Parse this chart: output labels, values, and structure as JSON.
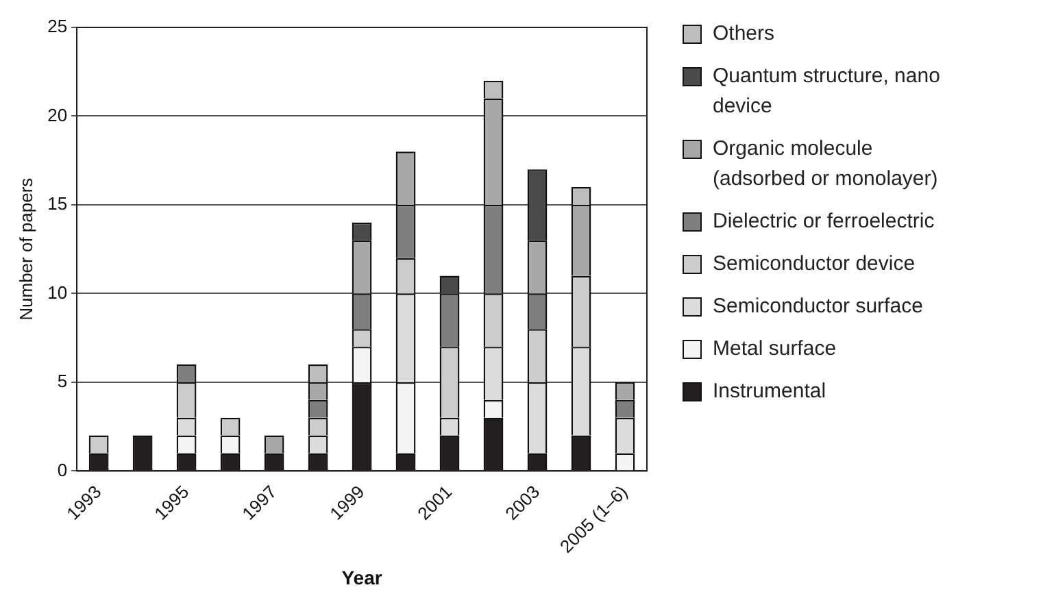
{
  "chart_data": {
    "type": "bar",
    "stacked": true,
    "xlabel": "Year",
    "ylabel": "Number of papers",
    "categories": [
      "1993",
      null,
      "1995",
      null,
      "1997",
      null,
      "1999",
      null,
      "2001",
      null,
      "2003",
      null,
      "2005 (1–6)"
    ],
    "series": [
      {
        "name": "Instrumental",
        "color": "#231f20",
        "values": [
          1,
          2,
          1,
          1,
          1,
          1,
          5,
          1,
          2,
          3,
          1,
          2,
          0
        ]
      },
      {
        "name": "Metal surface",
        "color": "#f4f4f4",
        "values": [
          0,
          0,
          1,
          1,
          0,
          0,
          2,
          4,
          0,
          1,
          0,
          0,
          1
        ]
      },
      {
        "name": "Semiconductor surface",
        "color": "#dcdcdc",
        "values": [
          0,
          0,
          1,
          0,
          0,
          1,
          0,
          5,
          1,
          3,
          4,
          5,
          2
        ]
      },
      {
        "name": "Semiconductor device",
        "color": "#cccccc",
        "values": [
          1,
          0,
          2,
          1,
          0,
          1,
          1,
          2,
          4,
          3,
          3,
          4,
          0
        ]
      },
      {
        "name": "Dielectric or ferroelectric",
        "color": "#7f7f7f",
        "values": [
          0,
          0,
          1,
          0,
          0,
          1,
          2,
          3,
          3,
          5,
          2,
          0,
          1
        ]
      },
      {
        "name": "Organic molecule (adsorbed or monolayer)",
        "color": "#a8a8a8",
        "values": [
          0,
          0,
          0,
          0,
          1,
          1,
          3,
          3,
          0,
          6,
          3,
          4,
          1
        ]
      },
      {
        "name": "Quantum structure, nano device",
        "color": "#4a4a4a",
        "values": [
          0,
          0,
          0,
          0,
          0,
          0,
          1,
          0,
          1,
          0,
          4,
          0,
          0
        ]
      },
      {
        "name": "Others",
        "color": "#bdbdbd",
        "values": [
          0,
          0,
          0,
          0,
          0,
          1,
          0,
          0,
          0,
          1,
          0,
          1,
          0
        ]
      }
    ],
    "ylim": [
      0,
      25
    ],
    "yticks": [
      0,
      5,
      10,
      15,
      20,
      25
    ],
    "grid": "y",
    "legend": "right"
  }
}
